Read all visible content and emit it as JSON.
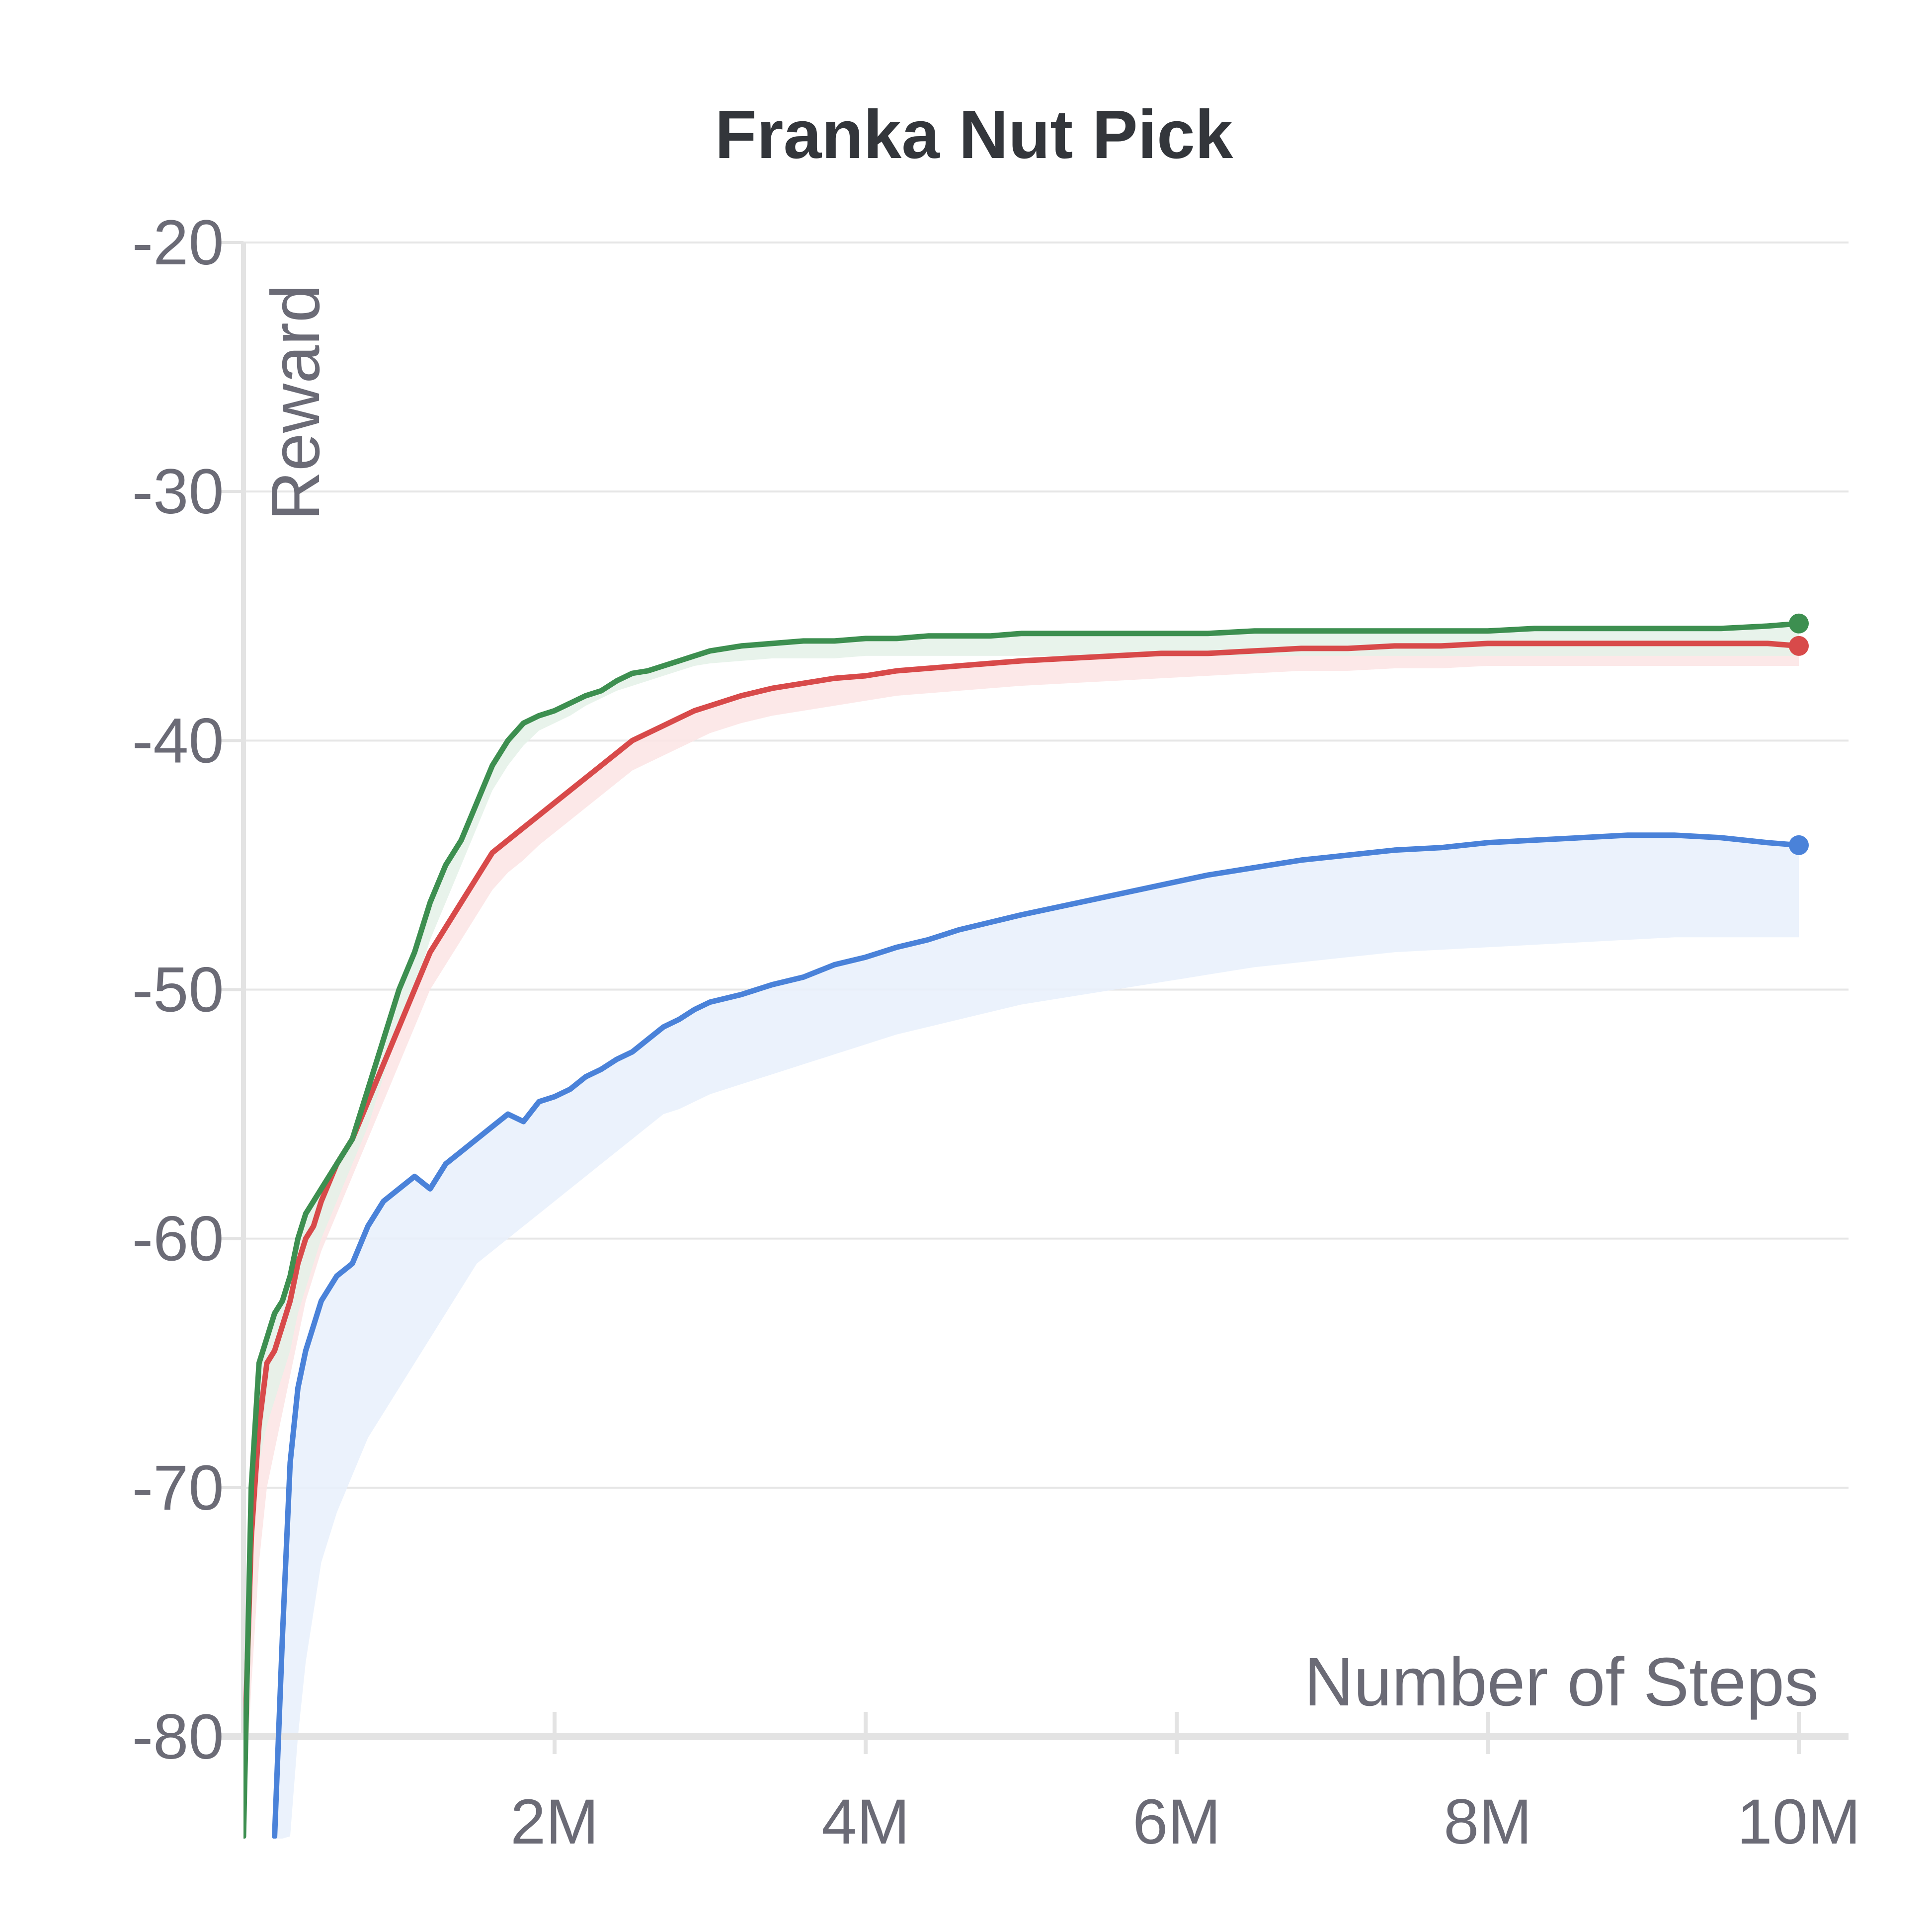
{
  "chart_data": {
    "type": "line",
    "title": "Franka Nut Pick",
    "xlabel": "Number of Steps",
    "ylabel": "Reward",
    "xlim": [
      0,
      10000000
    ],
    "ylim": [
      -80,
      -20
    ],
    "grid": true,
    "x_ticks": [
      {
        "value": 2000000,
        "label": "2M"
      },
      {
        "value": 4000000,
        "label": "4M"
      },
      {
        "value": 6000000,
        "label": "6M"
      },
      {
        "value": 8000000,
        "label": "8M"
      },
      {
        "value": 10000000,
        "label": "10M"
      }
    ],
    "y_ticks": [
      {
        "value": -20,
        "label": "-20"
      },
      {
        "value": -30,
        "label": "-30"
      },
      {
        "value": -40,
        "label": "-40"
      },
      {
        "value": -50,
        "label": "-50"
      },
      {
        "value": -60,
        "label": "-60"
      },
      {
        "value": -70,
        "label": "-70"
      },
      {
        "value": -80,
        "label": "-80"
      }
    ],
    "series": [
      {
        "color": "#4a82d9",
        "band_color": "#e8f0fc",
        "x": [
          200000,
          250000,
          300000,
          350000,
          400000,
          450000,
          500000,
          600000,
          700000,
          800000,
          900000,
          1000000,
          1100000,
          1200000,
          1300000,
          1400000,
          1500000,
          1600000,
          1700000,
          1800000,
          1900000,
          2000000,
          2100000,
          2200000,
          2300000,
          2400000,
          2500000,
          2600000,
          2700000,
          2800000,
          2900000,
          3000000,
          3200000,
          3400000,
          3600000,
          3800000,
          4000000,
          4200000,
          4400000,
          4600000,
          4800000,
          5000000,
          5300000,
          5600000,
          5900000,
          6200000,
          6500000,
          6800000,
          7100000,
          7400000,
          7700000,
          8000000,
          8300000,
          8600000,
          8900000,
          9200000,
          9500000,
          9800000,
          10000000
        ],
        "y": [
          -84.0,
          -76.0,
          -69.0,
          -66.0,
          -64.5,
          -63.5,
          -62.5,
          -61.5,
          -61.0,
          -59.5,
          -58.5,
          -58.0,
          -57.5,
          -58.0,
          -57.0,
          -56.5,
          -56.0,
          -55.5,
          -55.0,
          -55.3,
          -54.5,
          -54.3,
          -54.0,
          -53.5,
          -53.2,
          -52.8,
          -52.5,
          -52.0,
          -51.5,
          -51.2,
          -50.8,
          -50.5,
          -50.2,
          -49.8,
          -49.5,
          -49.0,
          -48.7,
          -48.3,
          -48.0,
          -47.6,
          -47.3,
          -47.0,
          -46.6,
          -46.2,
          -45.8,
          -45.4,
          -45.1,
          -44.8,
          -44.6,
          -44.4,
          -44.3,
          -44.1,
          -44.0,
          -43.9,
          -43.8,
          -43.8,
          -43.9,
          -44.1,
          -44.2
        ],
        "band_low": [
          -100.0,
          -90.0,
          -84.0,
          -80.0,
          -77.0,
          -75.0,
          -73.0,
          -71.0,
          -69.5,
          -68.0,
          -67.0,
          -66.0,
          -65.0,
          -64.0,
          -63.0,
          -62.0,
          -61.0,
          -60.5,
          -60.0,
          -59.5,
          -59.0,
          -58.5,
          -58.0,
          -57.5,
          -57.0,
          -56.5,
          -56.0,
          -55.5,
          -55.0,
          -54.8,
          -54.5,
          -54.2,
          -53.8,
          -53.4,
          -53.0,
          -52.6,
          -52.2,
          -51.8,
          -51.5,
          -51.2,
          -50.9,
          -50.6,
          -50.3,
          -50.0,
          -49.7,
          -49.4,
          -49.1,
          -48.9,
          -48.7,
          -48.5,
          -48.4,
          -48.3,
          -48.2,
          -48.1,
          -48.0,
          -47.9,
          -47.9,
          -47.9,
          -47.9
        ],
        "end_marker": true
      },
      {
        "color": "#d84a4a",
        "band_color": "#fbe4e4",
        "x": [
          0,
          50000,
          100000,
          150000,
          200000,
          250000,
          300000,
          350000,
          400000,
          450000,
          500000,
          600000,
          700000,
          800000,
          900000,
          1000000,
          1100000,
          1200000,
          1300000,
          1400000,
          1500000,
          1600000,
          1700000,
          1800000,
          1900000,
          2000000,
          2100000,
          2200000,
          2300000,
          2400000,
          2500000,
          2600000,
          2700000,
          2800000,
          2900000,
          3000000,
          3200000,
          3400000,
          3600000,
          3800000,
          4000000,
          4200000,
          4400000,
          4600000,
          4800000,
          5000000,
          5300000,
          5600000,
          5900000,
          6200000,
          6500000,
          6800000,
          7100000,
          7400000,
          7700000,
          8000000,
          8300000,
          8600000,
          8900000,
          9200000,
          9500000,
          9800000,
          10000000
        ],
        "y": [
          -82.0,
          -72.0,
          -67.5,
          -65.0,
          -64.5,
          -63.5,
          -62.5,
          -61.0,
          -60.0,
          -59.5,
          -58.5,
          -57.0,
          -56.0,
          -54.5,
          -53.0,
          -51.5,
          -50.0,
          -48.5,
          -47.5,
          -46.5,
          -45.5,
          -44.5,
          -44.0,
          -43.5,
          -43.0,
          -42.5,
          -42.0,
          -41.5,
          -41.0,
          -40.5,
          -40.0,
          -39.7,
          -39.4,
          -39.1,
          -38.8,
          -38.6,
          -38.2,
          -37.9,
          -37.7,
          -37.5,
          -37.4,
          -37.2,
          -37.1,
          -37.0,
          -36.9,
          -36.8,
          -36.7,
          -36.6,
          -36.5,
          -36.5,
          -36.4,
          -36.3,
          -36.3,
          -36.2,
          -36.2,
          -36.1,
          -36.1,
          -36.1,
          -36.1,
          -36.1,
          -36.1,
          -36.1,
          -36.2
        ],
        "band_low": [
          -100.0,
          -78.0,
          -73.0,
          -70.0,
          -68.5,
          -67.0,
          -65.5,
          -64.0,
          -62.5,
          -61.5,
          -60.5,
          -59.0,
          -57.5,
          -56.0,
          -54.5,
          -53.0,
          -51.5,
          -50.0,
          -49.0,
          -48.0,
          -47.0,
          -46.0,
          -45.3,
          -44.8,
          -44.2,
          -43.7,
          -43.2,
          -42.7,
          -42.2,
          -41.7,
          -41.2,
          -40.9,
          -40.6,
          -40.3,
          -40.0,
          -39.7,
          -39.3,
          -39.0,
          -38.8,
          -38.6,
          -38.4,
          -38.2,
          -38.1,
          -38.0,
          -37.9,
          -37.8,
          -37.7,
          -37.6,
          -37.5,
          -37.4,
          -37.3,
          -37.2,
          -37.2,
          -37.1,
          -37.1,
          -37.0,
          -37.0,
          -37.0,
          -37.0,
          -37.0,
          -37.0,
          -37.0,
          -37.0
        ],
        "end_marker": true
      },
      {
        "color": "#3d8f50",
        "band_color": "#e4f1e8",
        "x": [
          0,
          50000,
          100000,
          150000,
          200000,
          250000,
          300000,
          350000,
          400000,
          450000,
          500000,
          600000,
          700000,
          800000,
          900000,
          1000000,
          1100000,
          1200000,
          1300000,
          1400000,
          1500000,
          1600000,
          1700000,
          1800000,
          1900000,
          2000000,
          2100000,
          2200000,
          2300000,
          2400000,
          2500000,
          2600000,
          2700000,
          2800000,
          2900000,
          3000000,
          3200000,
          3400000,
          3600000,
          3800000,
          4000000,
          4200000,
          4400000,
          4600000,
          4800000,
          5000000,
          5300000,
          5600000,
          5900000,
          6200000,
          6500000,
          6800000,
          7100000,
          7400000,
          7700000,
          8000000,
          8300000,
          8600000,
          8900000,
          9200000,
          9500000,
          9800000,
          10000000
        ],
        "y": [
          -84.0,
          -70.0,
          -65.0,
          -64.0,
          -63.0,
          -62.5,
          -61.5,
          -60.0,
          -59.0,
          -58.5,
          -58.0,
          -57.0,
          -56.0,
          -54.0,
          -52.0,
          -50.0,
          -48.5,
          -46.5,
          -45.0,
          -44.0,
          -42.5,
          -41.0,
          -40.0,
          -39.3,
          -39.0,
          -38.8,
          -38.5,
          -38.2,
          -38.0,
          -37.6,
          -37.3,
          -37.2,
          -37.0,
          -36.8,
          -36.6,
          -36.4,
          -36.2,
          -36.1,
          -36.0,
          -36.0,
          -35.9,
          -35.9,
          -35.8,
          -35.8,
          -35.8,
          -35.7,
          -35.7,
          -35.7,
          -35.7,
          -35.7,
          -35.6,
          -35.6,
          -35.6,
          -35.6,
          -35.6,
          -35.6,
          -35.5,
          -35.5,
          -35.5,
          -35.5,
          -35.5,
          -35.4,
          -35.3
        ],
        "band_low": [
          -100.0,
          -74.0,
          -69.0,
          -67.5,
          -66.5,
          -65.5,
          -64.5,
          -63.0,
          -62.0,
          -61.0,
          -60.0,
          -58.5,
          -57.0,
          -55.5,
          -53.5,
          -51.5,
          -50.0,
          -48.0,
          -46.5,
          -45.0,
          -43.5,
          -42.0,
          -41.0,
          -40.2,
          -39.6,
          -39.3,
          -39.0,
          -38.6,
          -38.3,
          -38.0,
          -37.8,
          -37.6,
          -37.4,
          -37.2,
          -37.0,
          -36.9,
          -36.8,
          -36.7,
          -36.7,
          -36.7,
          -36.6,
          -36.6,
          -36.6,
          -36.6,
          -36.6,
          -36.6,
          -36.6,
          -36.6,
          -36.6,
          -36.6,
          -36.6,
          -36.6,
          -36.6,
          -36.6,
          -36.6,
          -36.6,
          -36.6,
          -36.6,
          -36.6,
          -36.6,
          -36.6,
          -36.6,
          -36.6
        ],
        "end_marker": true
      }
    ]
  }
}
